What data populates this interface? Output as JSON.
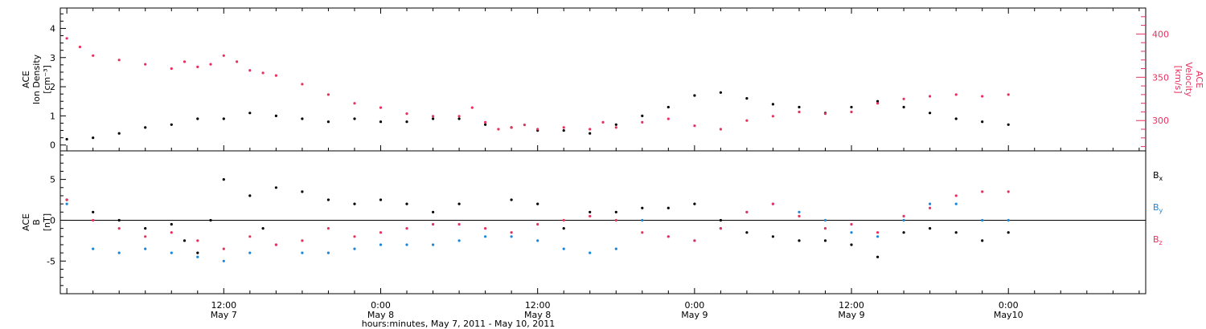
{
  "chart_data": [
    {
      "type": "scatter",
      "title": "",
      "xlabel": "hours:minutes, May  7, 2011 - May 10, 2011",
      "x_tick_labels": [
        {
          "time": "12:00",
          "day": "May 7",
          "hour": 12
        },
        {
          "time": "0:00",
          "day": "May 8",
          "hour": 24
        },
        {
          "time": "12:00",
          "day": "May 8",
          "hour": 36
        },
        {
          "time": "0:00",
          "day": "May 9",
          "hour": 48
        },
        {
          "time": "12:00",
          "day": "May 9",
          "hour": 60
        },
        {
          "time": "0:00",
          "day": "May10",
          "hour": 72
        }
      ],
      "xlim": [
        -0.5,
        82.5
      ],
      "left_axis": {
        "label_lines": [
          "ACE",
          "Ion Density",
          "[cm⁻³]"
        ],
        "ylim": [
          -0.2,
          4.7
        ],
        "ticks": [
          "0",
          "1",
          "2",
          "3",
          "4"
        ],
        "tick_values": [
          0,
          1,
          2,
          3,
          4
        ],
        "color": "#000000"
      },
      "right_axis": {
        "label_lines": [
          "ACE",
          "Velocity",
          "[km/s]"
        ],
        "ylim": [
          265,
          430
        ],
        "ticks": [
          "300",
          "350",
          "400"
        ],
        "tick_values": [
          300,
          350,
          400
        ],
        "color": "#e8305f"
      },
      "series": [
        {
          "axis": "left",
          "color": "#000000",
          "x": [
            0,
            2,
            4,
            6,
            8,
            10,
            12,
            14,
            16,
            18,
            20,
            22,
            24,
            26,
            28,
            30,
            32,
            34,
            36,
            38,
            40,
            42,
            44,
            46,
            48,
            50,
            52,
            54,
            56,
            58,
            60,
            62,
            64,
            66,
            68,
            70,
            72
          ],
          "y": [
            0.2,
            0.25,
            0.4,
            0.6,
            0.7,
            0.9,
            0.9,
            1.1,
            1.0,
            0.9,
            0.8,
            0.9,
            0.8,
            0.8,
            0.9,
            0.9,
            0.7,
            0.6,
            0.5,
            0.5,
            0.4,
            0.7,
            1.0,
            1.3,
            1.7,
            1.8,
            1.6,
            1.4,
            1.3,
            1.1,
            1.3,
            1.5,
            1.3,
            1.1,
            0.9,
            0.8,
            0.7
          ]
        },
        {
          "axis": "right",
          "color": "#e8305f",
          "x": [
            0,
            1,
            2,
            4,
            6,
            8,
            9,
            10,
            11,
            12,
            13,
            14,
            15,
            16,
            18,
            20,
            22,
            24,
            26,
            28,
            30,
            31,
            32,
            33,
            34,
            35,
            36,
            38,
            40,
            41,
            42,
            44,
            46,
            48,
            50,
            52,
            54,
            56,
            58,
            60,
            62,
            64,
            66,
            68,
            70,
            72
          ],
          "y": [
            395,
            385,
            375,
            370,
            365,
            360,
            368,
            362,
            365,
            375,
            368,
            358,
            355,
            352,
            342,
            330,
            320,
            315,
            308,
            305,
            305,
            315,
            298,
            290,
            292,
            295,
            290,
            292,
            290,
            298,
            292,
            298,
            302,
            294,
            290,
            300,
            305,
            310,
            308,
            310,
            320,
            325,
            328,
            330,
            328,
            330
          ]
        }
      ]
    },
    {
      "type": "scatter",
      "title": "",
      "left_axis": {
        "label_lines": [
          "ACE",
          "B",
          "[nT]"
        ],
        "ylim": [
          -9,
          8.5
        ],
        "ticks": [
          "-5",
          "0",
          "5"
        ],
        "tick_values": [
          -5,
          0,
          5
        ],
        "color": "#000000"
      },
      "zero_line": 0,
      "legend": [
        {
          "label": "Bx",
          "base": "B",
          "sub": "x",
          "color": "#000000"
        },
        {
          "label": "By",
          "base": "B",
          "sub": "y",
          "color": "#1a86d8"
        },
        {
          "label": "Bz",
          "base": "B",
          "sub": "z",
          "color": "#e8305f"
        }
      ],
      "series": [
        {
          "name": "Bx",
          "color": "#000000",
          "x": [
            0,
            2,
            4,
            6,
            8,
            9,
            10,
            11,
            12,
            14,
            15,
            16,
            18,
            20,
            22,
            24,
            26,
            28,
            30,
            34,
            36,
            38,
            40,
            42,
            44,
            46,
            48,
            50,
            52,
            54,
            56,
            58,
            60,
            62,
            64,
            66,
            68,
            70,
            72
          ],
          "y": [
            2.5,
            1.0,
            0.0,
            -1.0,
            -0.5,
            -2.5,
            -4.0,
            0.0,
            5.0,
            3.0,
            -1.0,
            4.0,
            3.5,
            2.5,
            2.0,
            2.5,
            2.0,
            1.0,
            2.0,
            2.5,
            2.0,
            -1.0,
            1.0,
            1.0,
            1.5,
            1.5,
            2.0,
            0.0,
            -1.5,
            -2.0,
            -2.5,
            -2.5,
            -3.0,
            -4.5,
            -1.5,
            -1.0,
            -1.5,
            -2.5,
            -1.5
          ]
        },
        {
          "name": "By",
          "color": "#1a86d8",
          "x": [
            0,
            2,
            4,
            6,
            8,
            10,
            12,
            14,
            16,
            18,
            20,
            22,
            24,
            26,
            28,
            30,
            32,
            34,
            36,
            38,
            40,
            42,
            44,
            46,
            48,
            50,
            52,
            54,
            56,
            58,
            60,
            62,
            64,
            66,
            68,
            70,
            72
          ],
          "y": [
            2.0,
            -3.5,
            -4.0,
            -3.5,
            -4.0,
            -4.5,
            -5.0,
            -4.0,
            -3.0,
            -4.0,
            -4.0,
            -3.5,
            -3.0,
            -3.0,
            -3.0,
            -2.5,
            -2.0,
            -2.0,
            -2.5,
            -3.5,
            -4.0,
            -3.5,
            0.0,
            -2.0,
            -2.5,
            -1.0,
            1.0,
            2.0,
            1.0,
            0.0,
            -1.5,
            -2.0,
            0.0,
            2.0,
            2.0,
            0.0,
            0.0
          ]
        },
        {
          "name": "Bz",
          "color": "#e8305f",
          "x": [
            0,
            2,
            4,
            6,
            8,
            10,
            12,
            14,
            16,
            18,
            20,
            22,
            24,
            26,
            28,
            30,
            32,
            34,
            36,
            38,
            40,
            42,
            44,
            46,
            48,
            50,
            52,
            54,
            56,
            58,
            60,
            62,
            64,
            66,
            68,
            70,
            72
          ],
          "y": [
            2.5,
            0.0,
            -1.0,
            -2.0,
            -1.5,
            -2.5,
            -3.5,
            -2.0,
            -3.0,
            -2.5,
            -1.0,
            -2.0,
            -1.5,
            -1.0,
            -0.5,
            -0.5,
            -1.0,
            -1.5,
            -0.5,
            0.0,
            0.5,
            0.0,
            -1.5,
            -2.0,
            -2.5,
            -1.0,
            1.0,
            2.0,
            0.5,
            -1.0,
            -0.5,
            -1.5,
            0.5,
            1.5,
            3.0,
            3.5,
            3.5
          ]
        }
      ]
    }
  ]
}
